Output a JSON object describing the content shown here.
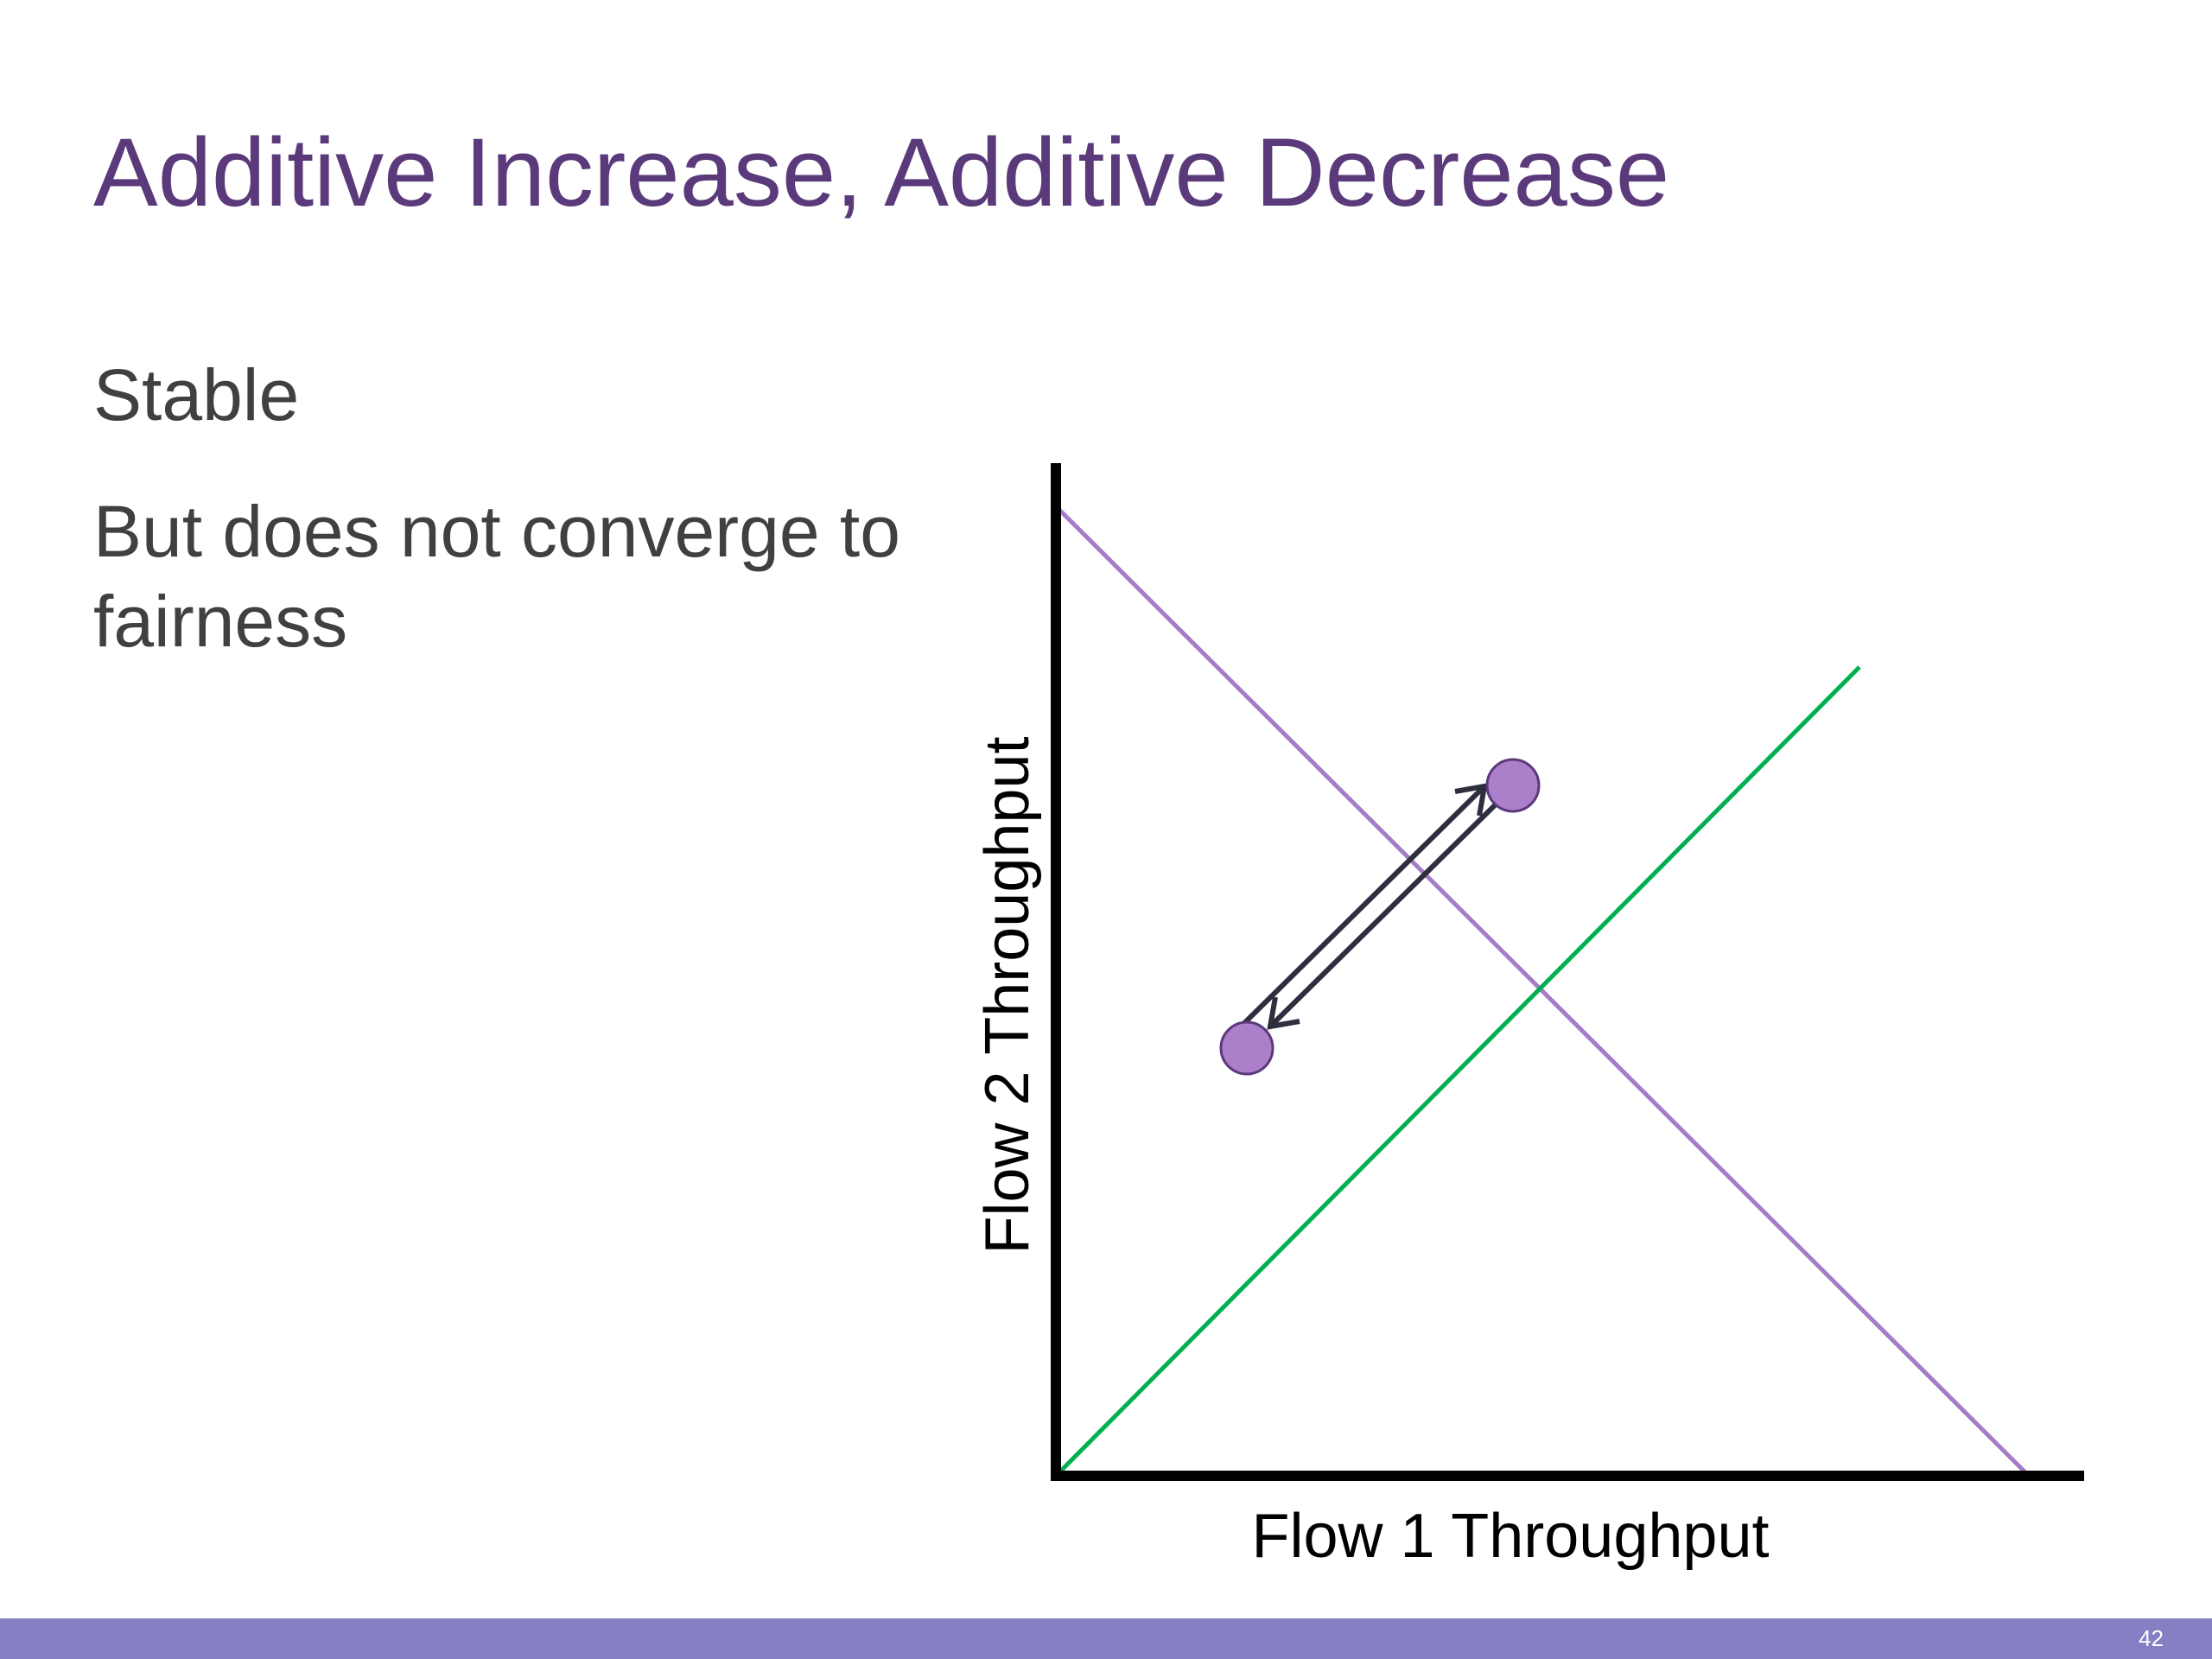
{
  "slide": {
    "title": "Additive Increase, Additive Decrease",
    "bullets": [
      "Stable",
      "But does not converge to fairness"
    ],
    "slide_number": "42"
  },
  "diagram": {
    "x_axis_label": "Flow 1 Throughput",
    "y_axis_label": "Flow 2 Throughput",
    "colors": {
      "efficiency_line": "#a57cc7",
      "fairness_line": "#00b050",
      "points": "#ab7fca",
      "arrows": "#2e2e3e",
      "axes": "#000000",
      "title": "#5a3a7a",
      "footer": "#8580c3"
    }
  }
}
